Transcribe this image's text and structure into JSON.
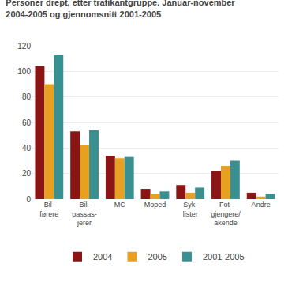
{
  "chart_data": {
    "type": "bar",
    "title": "Personer drept, etter trafikantgruppe. Januar-november\n2004-2005 og gjennomsnitt 2001-2005",
    "categories": [
      "Bil-\nførere",
      "Bil-\npassas-\njerer",
      "MC",
      "Moped",
      "Syk-\nlister",
      "Fot-\ngjengere/\nakende",
      "Andre"
    ],
    "series": [
      {
        "name": "2004",
        "color": "#8B1414",
        "values": [
          104,
          53,
          34,
          8,
          11,
          22,
          5
        ]
      },
      {
        "name": "2005",
        "color": "#E8A020",
        "values": [
          90,
          42,
          32,
          4,
          5,
          26,
          2
        ]
      },
      {
        "name": "2001-2005",
        "color": "#3A9090",
        "values": [
          113,
          54,
          33,
          6,
          9,
          30,
          4
        ]
      }
    ],
    "ylim": [
      0,
      120
    ],
    "yticks": [
      0,
      20,
      40,
      60,
      80,
      100,
      120
    ],
    "grid": true,
    "legend": "bottom"
  }
}
